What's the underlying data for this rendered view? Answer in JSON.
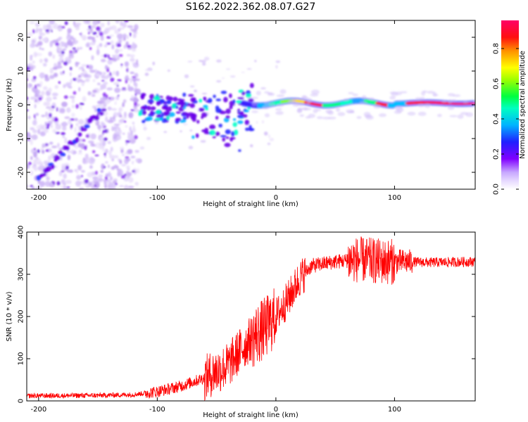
{
  "page": {
    "title": "S162.2022.362.08.07.G27"
  },
  "chart_data": [
    {
      "type": "heatmap",
      "xlabel": "Height of straight line (km)",
      "ylabel": "Frequency (Hz)",
      "xlim": [
        -210,
        168
      ],
      "ylim": [
        -25,
        25
      ],
      "xticks": [
        -200,
        -100,
        0,
        100
      ],
      "yticks": [
        -20,
        -10,
        0,
        10,
        20
      ],
      "colorbar": {
        "label": "Normalized spectral amplitude",
        "range": [
          0.0,
          0.96
        ],
        "ticks": [
          "0.0",
          "0.2",
          "0.4",
          "0.6",
          "0.8"
        ],
        "colors": [
          "#ffffff",
          "#d9c6ff",
          "#8000ff",
          "#2020ff",
          "#00c0ff",
          "#00ff80",
          "#c0ff00",
          "#ffff00",
          "#ff8000",
          "#ff0000",
          "#ff0066"
        ]
      }
    },
    {
      "type": "line",
      "xlabel": "Height of straight line (km)",
      "ylabel": "SNR (10 * v/v)",
      "xlim": [
        -210,
        168
      ],
      "ylim": [
        0,
        400
      ],
      "xticks": [
        -200,
        -100,
        0,
        100
      ],
      "yticks": [
        0,
        100,
        200,
        300,
        400
      ],
      "color": "#ff0000",
      "trend": {
        "x": [
          -210,
          -150,
          -120,
          -100,
          -80,
          -60,
          -40,
          -30,
          -20,
          -10,
          0,
          10,
          20,
          30,
          50,
          70,
          90,
          110,
          130,
          168
        ],
        "y": [
          12,
          13,
          15,
          22,
          35,
          55,
          85,
          120,
          150,
          170,
          200,
          240,
          290,
          320,
          330,
          335,
          330,
          330,
          328,
          330
        ]
      }
    }
  ]
}
